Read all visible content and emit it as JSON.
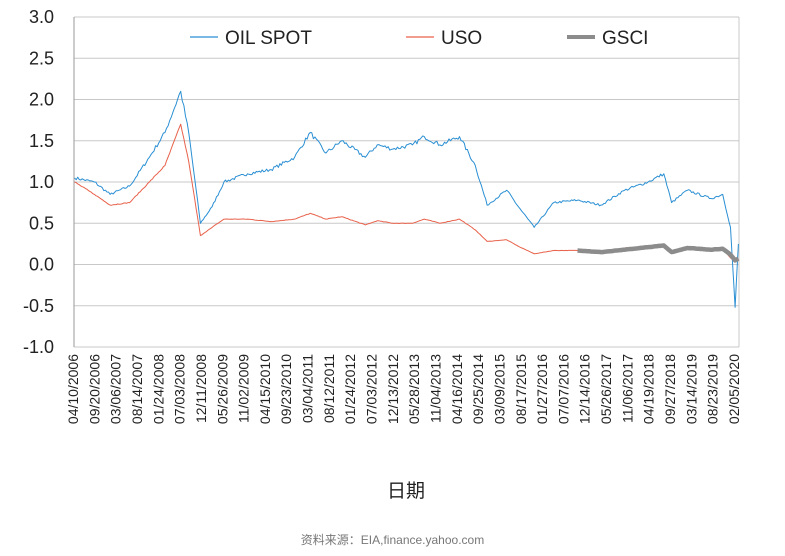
{
  "chart_data": {
    "type": "line",
    "xlabel": "日期",
    "ylabel": "",
    "ylim": [
      -1.0,
      3.0
    ],
    "yticks": [
      "3.0",
      "2.5",
      "2.0",
      "1.5",
      "1.0",
      "0.5",
      "0.0",
      "-0.5",
      "-1.0"
    ],
    "grid": "horizontal",
    "legend_position": "top",
    "x_tick_labels": [
      "04/10/2006",
      "09/20/2006",
      "03/06/2007",
      "08/14/2007",
      "01/24/2008",
      "07/03/2008",
      "12/11/2008",
      "05/26/2009",
      "11/02/2009",
      "04/15/2010",
      "09/23/2010",
      "03/04/2011",
      "08/12/2011",
      "01/24/2012",
      "07/03/2012",
      "12/13/2012",
      "05/28/2013",
      "11/04/2013",
      "04/16/2014",
      "09/25/2014",
      "03/09/2015",
      "08/17/2015",
      "01/27/2016",
      "07/07/2016",
      "12/14/2016",
      "05/26/2017",
      "11/06/2017",
      "04/19/2018",
      "09/27/2018",
      "03/14/2019",
      "08/23/2019",
      "02/05/2020"
    ],
    "series": [
      {
        "name": "OIL SPOT",
        "color": "#2a8fd3",
        "x": [
          "2006-04",
          "2006-09",
          "2007-01",
          "2007-06",
          "2007-11",
          "2008-03",
          "2008-07",
          "2008-09",
          "2008-12",
          "2009-03",
          "2009-06",
          "2009-12",
          "2010-06",
          "2010-12",
          "2011-04",
          "2011-08",
          "2011-12",
          "2012-06",
          "2012-09",
          "2013-01",
          "2013-06",
          "2013-09",
          "2014-01",
          "2014-06",
          "2014-10",
          "2015-01",
          "2015-06",
          "2015-09",
          "2016-01",
          "2016-06",
          "2016-12",
          "2017-06",
          "2017-12",
          "2018-06",
          "2018-10",
          "2018-12",
          "2019-04",
          "2019-10",
          "2020-01",
          "2020-03",
          "2020-04-20",
          "2020-05"
        ],
        "values": [
          1.05,
          1.0,
          0.85,
          0.95,
          1.3,
          1.6,
          2.1,
          1.6,
          0.5,
          0.7,
          1.0,
          1.1,
          1.15,
          1.3,
          1.6,
          1.35,
          1.5,
          1.3,
          1.45,
          1.4,
          1.45,
          1.55,
          1.45,
          1.55,
          1.2,
          0.72,
          0.9,
          0.7,
          0.45,
          0.75,
          0.78,
          0.72,
          0.9,
          1.0,
          1.1,
          0.75,
          0.9,
          0.8,
          0.85,
          0.45,
          -0.52,
          0.25
        ]
      },
      {
        "name": "USO",
        "color": "#e8614a",
        "x": [
          "2006-04",
          "2006-09",
          "2007-01",
          "2007-06",
          "2007-11",
          "2008-03",
          "2008-07",
          "2008-09",
          "2008-12",
          "2009-03",
          "2009-06",
          "2009-12",
          "2010-06",
          "2010-12",
          "2011-04",
          "2011-08",
          "2011-12",
          "2012-06",
          "2012-09",
          "2013-01",
          "2013-06",
          "2013-09",
          "2014-01",
          "2014-06",
          "2014-10",
          "2015-01",
          "2015-06",
          "2015-09",
          "2016-01",
          "2016-06",
          "2016-12",
          "2017-06",
          "2017-12",
          "2018-06",
          "2018-10",
          "2018-12",
          "2019-04",
          "2019-10",
          "2020-01",
          "2020-03",
          "2020-04-20",
          "2020-05"
        ],
        "values": [
          1.0,
          0.85,
          0.72,
          0.75,
          1.0,
          1.2,
          1.7,
          1.25,
          0.35,
          0.45,
          0.55,
          0.55,
          0.52,
          0.55,
          0.62,
          0.55,
          0.58,
          0.48,
          0.53,
          0.5,
          0.5,
          0.55,
          0.5,
          0.55,
          0.42,
          0.28,
          0.3,
          0.22,
          0.13,
          0.17,
          0.17,
          0.15,
          0.2,
          0.22,
          0.25,
          0.16,
          0.2,
          0.18,
          0.19,
          0.08,
          0.04,
          0.07
        ]
      },
      {
        "name": "GSCI",
        "color": "#8c8c8c",
        "x": [
          "2016-12",
          "2017-06",
          "2017-12",
          "2018-06",
          "2018-10",
          "2018-12",
          "2019-04",
          "2019-10",
          "2020-01",
          "2020-03",
          "2020-04-20",
          "2020-05"
        ],
        "values": [
          0.17,
          0.15,
          0.18,
          0.21,
          0.23,
          0.15,
          0.2,
          0.18,
          0.19,
          0.12,
          0.05,
          0.07
        ]
      }
    ]
  },
  "source_text": "资料来源：EIA,finance.yahoo.com"
}
